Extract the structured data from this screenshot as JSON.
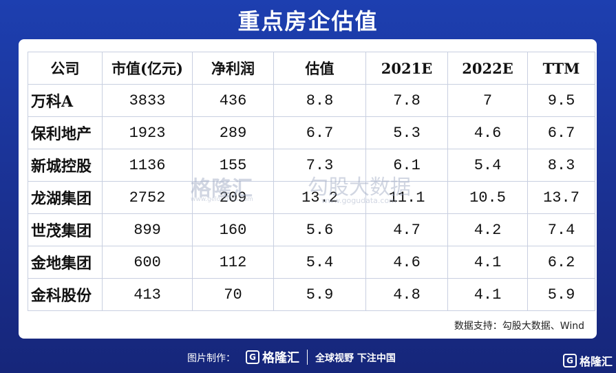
{
  "header": {
    "title": "重点房企估值"
  },
  "table": {
    "columns": [
      "公司",
      "市值(亿元)",
      "净利润",
      "估值",
      "2021E",
      "2022E",
      "TTM"
    ],
    "rows": [
      [
        "万科A",
        3833,
        436,
        8.8,
        7.8,
        7,
        9.5
      ],
      [
        "保利地产",
        1923,
        289,
        6.7,
        5.3,
        4.6,
        6.7
      ],
      [
        "新城控股",
        1136,
        155,
        7.3,
        6.1,
        5.4,
        8.3
      ],
      [
        "龙湖集团",
        2752,
        209,
        13.2,
        11.1,
        10.5,
        13.7
      ],
      [
        "世茂集团",
        899,
        160,
        5.6,
        4.7,
        4.2,
        7.4
      ],
      [
        "金地集团",
        600,
        112,
        5.4,
        4.6,
        4.1,
        6.2
      ],
      [
        "金科股份",
        413,
        70,
        5.9,
        4.8,
        4.1,
        5.9
      ]
    ]
  },
  "watermark": {
    "brand": "格隆汇",
    "site": "www.gelonghui.com",
    "name": "勾股大数据",
    "url": "www.gogudata.com"
  },
  "source": "数据支持：勾股大数据、Wind",
  "footer": {
    "label": "图片制作：",
    "brand": "格隆汇",
    "slogan": "全球视野 下注中国",
    "corner": "格隆汇"
  }
}
